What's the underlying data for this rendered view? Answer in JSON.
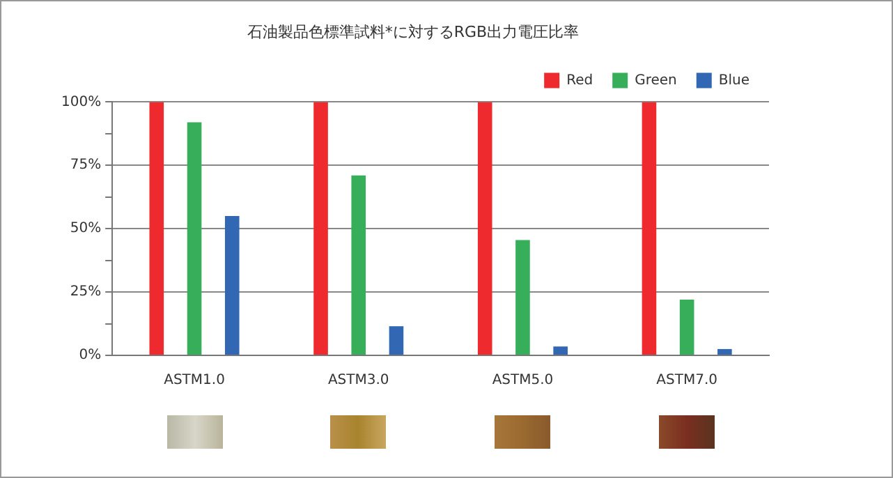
{
  "chart_data": {
    "type": "bar",
    "title": "石油製品色標準試料*に対するRGB出力電圧比率",
    "categories": [
      "ASTM1.0",
      "ASTM3.0",
      "ASTM5.0",
      "ASTM7.0"
    ],
    "series": [
      {
        "name": "Red",
        "color": "#ee2a2e",
        "values": [
          100,
          100,
          100,
          100
        ]
      },
      {
        "name": "Green",
        "color": "#37ae5a",
        "values": [
          92,
          71,
          45.5,
          22
        ]
      },
      {
        "name": "Blue",
        "color": "#3167b3",
        "values": [
          55,
          11.5,
          3.5,
          2.5
        ]
      }
    ],
    "ylim": [
      0,
      100
    ],
    "yticks": [
      {
        "value": 0,
        "label": "0%"
      },
      {
        "value": 12.5,
        "label": null
      },
      {
        "value": 25,
        "label": "25%"
      },
      {
        "value": 37.5,
        "label": null
      },
      {
        "value": 50,
        "label": "50%"
      },
      {
        "value": 62.5,
        "label": null
      },
      {
        "value": 75,
        "label": "75%"
      },
      {
        "value": 87.5,
        "label": null
      },
      {
        "value": 100,
        "label": "100%"
      }
    ],
    "grid": "y",
    "legend": "top right"
  }
}
